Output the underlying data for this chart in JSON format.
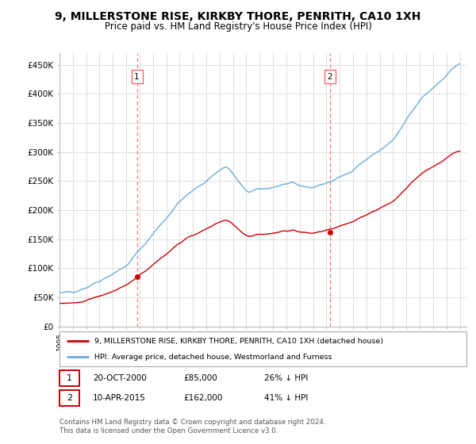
{
  "title": "9, MILLERSTONE RISE, KIRKBY THORE, PENRITH, CA10 1XH",
  "subtitle": "Price paid vs. HM Land Registry's House Price Index (HPI)",
  "title_fontsize": 10,
  "subtitle_fontsize": 8.5,
  "ylabel_ticks": [
    "£0",
    "£50K",
    "£100K",
    "£150K",
    "£200K",
    "£250K",
    "£300K",
    "£350K",
    "£400K",
    "£450K"
  ],
  "ytick_values": [
    0,
    50000,
    100000,
    150000,
    200000,
    250000,
    300000,
    350000,
    400000,
    450000
  ],
  "ylim": [
    0,
    470000
  ],
  "xlim_start": 1995.0,
  "xlim_end": 2025.5,
  "hpi_color": "#6aabdd",
  "price_color": "#cc0000",
  "vline_color": "#ff6666",
  "sale1_year": 2000.8,
  "sale1_price": 85000,
  "sale1_label": "1",
  "sale2_year": 2015.27,
  "sale2_price": 162000,
  "sale2_label": "2",
  "legend_label_red": "9, MILLERSTONE RISE, KIRKBY THORE, PENRITH, CA10 1XH (detached house)",
  "legend_label_blue": "HPI: Average price, detached house, Westmorland and Furness",
  "note1_num": "1",
  "note1_date": "20-OCT-2000",
  "note1_price": "£85,000",
  "note1_pct": "26% ↓ HPI",
  "note2_num": "2",
  "note2_date": "10-APR-2015",
  "note2_price": "£162,000",
  "note2_pct": "41% ↓ HPI",
  "footer": "Contains HM Land Registry data © Crown copyright and database right 2024.\nThis data is licensed under the Open Government Licence v3.0.",
  "bg_color": "#ffffff",
  "grid_color": "#dddddd"
}
